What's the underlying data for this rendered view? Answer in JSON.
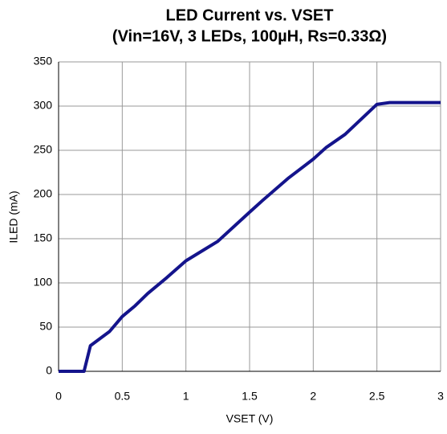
{
  "chart_data": {
    "type": "line",
    "title": "LED Current vs. VSET",
    "subtitle": "(Vin=16V, 3 LEDs, 100µH, Rs=0.33Ω)",
    "xlabel": "VSET (V)",
    "ylabel": "ILED (mA)",
    "x": [
      0,
      0.2,
      0.25,
      0.4,
      0.5,
      0.6,
      0.7,
      0.85,
      1.0,
      1.25,
      1.5,
      1.6,
      1.8,
      2.0,
      2.1,
      2.25,
      2.5,
      2.6,
      3.0
    ],
    "series": [
      {
        "color": "#14148c",
        "values": [
          0,
          0,
          29,
          45,
          62,
          74,
          88,
          106,
          125,
          147,
          180,
          193,
          218,
          240,
          253,
          268,
          302,
          304,
          304
        ]
      }
    ],
    "xlim": [
      0,
      3
    ],
    "xticks": [
      0,
      0.5,
      1,
      1.5,
      2,
      2.5,
      3
    ],
    "ylim": [
      0,
      350
    ],
    "yticks": [
      0,
      50,
      100,
      150,
      200,
      250,
      300,
      350
    ],
    "grid": true
  }
}
